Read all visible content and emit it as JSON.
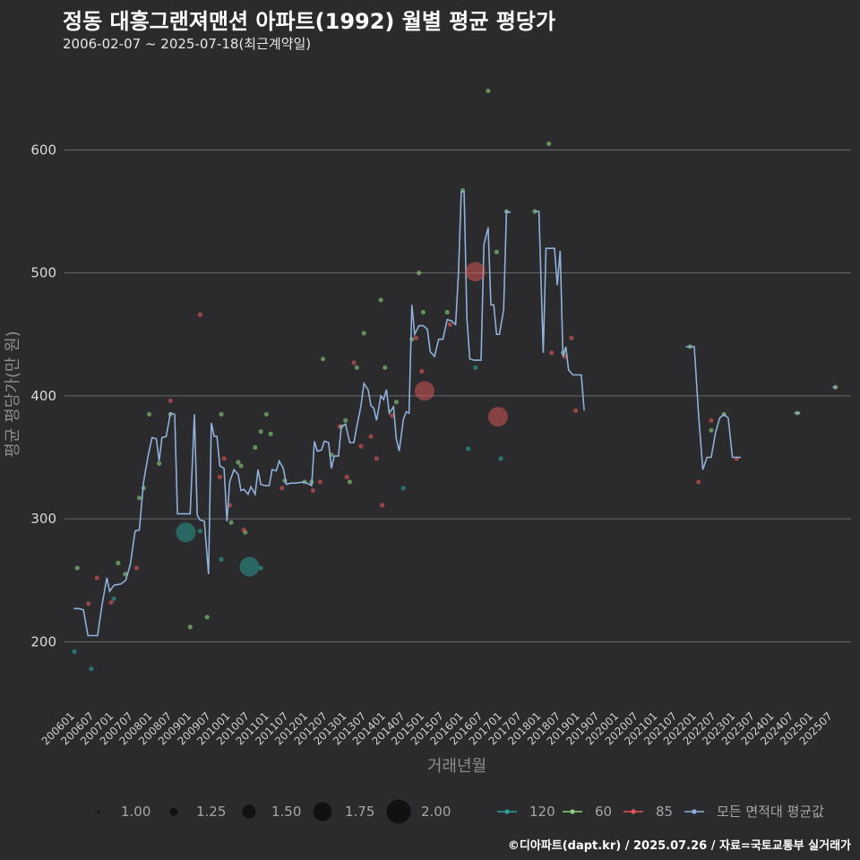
{
  "title": "정동 대흥그랜져맨션 아파트(1992) 월별 평균 평당가",
  "subtitle": "2006-02-07 ~ 2025-07-18(최근계약일)",
  "credit": "©디아파트(dapt.kr) / 2025.07.26 / 자료=국토교통부 실거래가",
  "colors": {
    "background": "#2b2b2d",
    "series_120": "#2aa198",
    "series_60": "#8cd17d",
    "series_85": "#e15759",
    "series_avg": "#8fb0d8"
  },
  "chart_data": {
    "type": "line",
    "xlabel": "거래년월",
    "ylabel": "평균 평당가(만 원)",
    "ylim": [
      150,
      660
    ],
    "y_ticks": [
      200,
      300,
      400,
      500,
      600
    ],
    "grid": true,
    "x_tick_labels": [
      "200601",
      "200607",
      "200701",
      "200707",
      "200801",
      "200807",
      "200901",
      "200907",
      "201001",
      "201007",
      "201101",
      "201107",
      "201201",
      "201207",
      "201301",
      "201307",
      "201401",
      "201407",
      "201501",
      "201507",
      "201601",
      "201607",
      "201701",
      "201707",
      "201801",
      "201807",
      "201901",
      "201907",
      "202001",
      "202007",
      "202101",
      "202107",
      "202201",
      "202207",
      "202301",
      "202307",
      "202401",
      "202407",
      "202501",
      "202507"
    ],
    "size_legend": {
      "title": "",
      "values": [
        "1.00",
        "1.25",
        "1.50",
        "1.75",
        "2.00"
      ]
    },
    "color_legend": [
      {
        "key": "series_120",
        "label": "120"
      },
      {
        "key": "series_60",
        "label": "60"
      },
      {
        "key": "series_85",
        "label": "85"
      },
      {
        "key": "series_avg",
        "label": "모든 면적대 평균값"
      }
    ],
    "avg_line": [
      [
        2006.08,
        227
      ],
      [
        2006.25,
        227
      ],
      [
        2006.42,
        226
      ],
      [
        2006.58,
        205
      ],
      [
        2006.75,
        205
      ],
      [
        2006.92,
        205
      ],
      [
        2007.08,
        230
      ],
      [
        2007.25,
        252
      ],
      [
        2007.35,
        241
      ],
      [
        2007.5,
        246
      ],
      [
        2007.75,
        247
      ],
      [
        2007.92,
        250
      ],
      [
        2008.08,
        263
      ],
      [
        2008.25,
        290
      ],
      [
        2008.4,
        291
      ],
      [
        2008.55,
        330
      ],
      [
        2008.7,
        350
      ],
      [
        2008.85,
        366
      ],
      [
        2009.0,
        365
      ],
      [
        2009.1,
        347
      ],
      [
        2009.2,
        366
      ],
      [
        2009.35,
        367
      ],
      [
        2009.5,
        386
      ],
      [
        2009.65,
        385
      ],
      [
        2009.75,
        304
      ],
      [
        2009.9,
        304
      ],
      [
        2010.05,
        304
      ],
      [
        2010.2,
        304
      ],
      [
        2010.35,
        385
      ],
      [
        2010.45,
        303
      ],
      [
        2010.55,
        299
      ],
      [
        2010.7,
        298
      ],
      [
        2010.85,
        255
      ],
      [
        2010.95,
        378
      ],
      [
        2011.05,
        367
      ],
      [
        2011.15,
        367
      ],
      [
        2011.25,
        343
      ],
      [
        2011.4,
        341
      ],
      [
        2011.5,
        298
      ],
      [
        2011.6,
        330
      ],
      [
        2011.75,
        340
      ],
      [
        2011.9,
        336
      ],
      [
        2012.0,
        323
      ],
      [
        2012.1,
        324
      ],
      [
        2012.25,
        320
      ],
      [
        2012.35,
        326
      ],
      [
        2012.5,
        320
      ],
      [
        2012.6,
        340
      ],
      [
        2012.7,
        328
      ],
      [
        2012.85,
        327
      ],
      [
        2013.0,
        327
      ],
      [
        2013.1,
        340
      ],
      [
        2013.25,
        339
      ],
      [
        2013.35,
        347
      ],
      [
        2013.5,
        341
      ],
      [
        2013.6,
        328
      ],
      [
        2013.75,
        329
      ],
      [
        2013.9,
        329
      ],
      [
        2014.25,
        330
      ],
      [
        2014.5,
        327
      ],
      [
        2014.6,
        363
      ],
      [
        2014.7,
        355
      ],
      [
        2014.85,
        356
      ],
      [
        2014.95,
        363
      ],
      [
        2015.1,
        362
      ],
      [
        2015.2,
        341
      ],
      [
        2015.3,
        351
      ],
      [
        2015.45,
        351
      ],
      [
        2015.55,
        375
      ],
      [
        2015.7,
        377
      ],
      [
        2015.85,
        362
      ],
      [
        2016.0,
        362
      ],
      [
        2016.1,
        375
      ],
      [
        2016.25,
        392
      ],
      [
        2016.35,
        410
      ],
      [
        2016.5,
        405
      ],
      [
        2016.6,
        392
      ],
      [
        2016.7,
        390
      ],
      [
        2016.8,
        380
      ],
      [
        2016.95,
        400
      ],
      [
        2017.05,
        397
      ],
      [
        2017.15,
        405
      ],
      [
        2017.25,
        386
      ],
      [
        2017.4,
        391
      ],
      [
        2017.5,
        365
      ],
      [
        2017.6,
        355
      ],
      [
        2017.75,
        381
      ],
      [
        2017.85,
        387
      ],
      [
        2017.95,
        386
      ],
      [
        2018.05,
        474
      ],
      [
        2018.15,
        450
      ],
      [
        2018.3,
        457
      ],
      [
        2018.45,
        457
      ],
      [
        2018.6,
        454
      ],
      [
        2018.7,
        436
      ],
      [
        2018.85,
        432
      ],
      [
        2019.0,
        446
      ],
      [
        2019.15,
        446
      ],
      [
        2019.3,
        462
      ],
      [
        2019.45,
        461
      ],
      [
        2019.6,
        458
      ],
      [
        2019.7,
        500
      ],
      [
        2019.8,
        566
      ],
      [
        2019.9,
        566
      ],
      [
        2020.0,
        463
      ],
      [
        2020.1,
        430
      ],
      [
        2020.25,
        429
      ],
      [
        2020.4,
        429
      ],
      [
        2020.5,
        429
      ],
      [
        2020.6,
        523
      ],
      [
        2020.75,
        537
      ],
      [
        2020.85,
        474
      ],
      [
        2020.95,
        474
      ],
      [
        2021.05,
        450
      ],
      [
        2021.15,
        450
      ],
      [
        2021.3,
        470
      ],
      [
        2021.4,
        550
      ],
      [
        2021.55,
        549
      ]
    ],
    "avg_line_2": [
      [
        2022.4,
        550
      ],
      [
        2022.55,
        550
      ],
      [
        2022.7,
        435
      ],
      [
        2022.8,
        520
      ],
      [
        2022.95,
        520
      ],
      [
        2023.1,
        520
      ],
      [
        2023.2,
        490
      ],
      [
        2023.3,
        518
      ],
      [
        2023.4,
        432
      ],
      [
        2023.5,
        440
      ],
      [
        2023.6,
        421
      ],
      [
        2023.75,
        417
      ],
      [
        2023.9,
        417
      ],
      [
        2024.05,
        417
      ],
      [
        2024.15,
        388
      ]
    ],
    "avg_line_3": [
      [
        2027.75,
        440
      ],
      [
        2027.9,
        440
      ],
      [
        2028.05,
        440
      ],
      [
        2028.2,
        385
      ],
      [
        2028.35,
        340
      ],
      [
        2028.5,
        350
      ],
      [
        2028.65,
        350
      ],
      [
        2028.8,
        370
      ],
      [
        2028.95,
        382
      ],
      [
        2029.1,
        385
      ],
      [
        2029.25,
        382
      ],
      [
        2029.4,
        350
      ],
      [
        2029.55,
        350
      ],
      [
        2029.7,
        350
      ]
    ],
    "avg_line_4": [
      [
        2031.6,
        386
      ],
      [
        2031.8,
        386
      ]
    ],
    "avg_line_5": [
      [
        2032.95,
        407
      ],
      [
        2033.1,
        407
      ]
    ],
    "points_120": [
      [
        2006.1,
        192
      ],
      [
        2006.7,
        178
      ],
      [
        2007.5,
        235
      ],
      [
        2010.55,
        290
      ],
      [
        2011.3,
        267
      ],
      [
        2012.7,
        260
      ],
      [
        2017.75,
        325
      ],
      [
        2020.05,
        357
      ],
      [
        2020.3,
        423
      ],
      [
        2021.2,
        349
      ]
    ],
    "points_60": [
      [
        2006.2,
        260
      ],
      [
        2007.65,
        264
      ],
      [
        2007.9,
        255
      ],
      [
        2008.4,
        317
      ],
      [
        2008.55,
        325
      ],
      [
        2008.75,
        385
      ],
      [
        2009.1,
        345
      ],
      [
        2009.5,
        385
      ],
      [
        2010.2,
        212
      ],
      [
        2010.8,
        220
      ],
      [
        2011.3,
        385
      ],
      [
        2011.65,
        297
      ],
      [
        2011.9,
        346
      ],
      [
        2012.0,
        343
      ],
      [
        2012.15,
        289
      ],
      [
        2012.5,
        358
      ],
      [
        2012.7,
        371
      ],
      [
        2012.9,
        385
      ],
      [
        2013.05,
        369
      ],
      [
        2013.55,
        331
      ],
      [
        2014.25,
        330
      ],
      [
        2014.5,
        330
      ],
      [
        2014.9,
        430
      ],
      [
        2015.2,
        352
      ],
      [
        2015.55,
        375
      ],
      [
        2015.7,
        380
      ],
      [
        2015.85,
        330
      ],
      [
        2016.1,
        423
      ],
      [
        2016.35,
        451
      ],
      [
        2016.95,
        478
      ],
      [
        2017.1,
        423
      ],
      [
        2017.5,
        395
      ],
      [
        2018.05,
        446
      ],
      [
        2018.3,
        500
      ],
      [
        2018.45,
        468
      ],
      [
        2019.3,
        468
      ],
      [
        2019.85,
        567
      ],
      [
        2020.75,
        648
      ],
      [
        2021.05,
        517
      ],
      [
        2021.4,
        550
      ],
      [
        2022.4,
        550
      ],
      [
        2022.9,
        605
      ],
      [
        2023.4,
        435
      ],
      [
        2027.9,
        440
      ],
      [
        2028.65,
        372
      ],
      [
        2029.1,
        385
      ],
      [
        2031.7,
        386
      ],
      [
        2033.05,
        407
      ]
    ],
    "points_85": [
      [
        2006.6,
        231
      ],
      [
        2006.9,
        252
      ],
      [
        2007.4,
        232
      ],
      [
        2008.3,
        260
      ],
      [
        2009.5,
        396
      ],
      [
        2010.55,
        466
      ],
      [
        2011.25,
        334
      ],
      [
        2011.4,
        349
      ],
      [
        2011.6,
        311
      ],
      [
        2012.1,
        291
      ],
      [
        2013.45,
        325
      ],
      [
        2014.55,
        323
      ],
      [
        2014.8,
        330
      ],
      [
        2015.5,
        375
      ],
      [
        2015.75,
        334
      ],
      [
        2016.0,
        427
      ],
      [
        2016.25,
        359
      ],
      [
        2016.6,
        367
      ],
      [
        2016.8,
        349
      ],
      [
        2017.0,
        311
      ],
      [
        2017.35,
        384
      ],
      [
        2018.2,
        447
      ],
      [
        2018.4,
        420
      ],
      [
        2019.4,
        458
      ],
      [
        2023.0,
        435
      ],
      [
        2023.45,
        432
      ],
      [
        2023.7,
        447
      ],
      [
        2023.85,
        388
      ],
      [
        2028.2,
        330
      ],
      [
        2028.65,
        380
      ],
      [
        2029.55,
        349
      ]
    ],
    "bubbles": [
      {
        "series": "series_120",
        "x": 2010.05,
        "y": 289,
        "size": 1.75
      },
      {
        "series": "series_120",
        "x": 2012.3,
        "y": 261,
        "size": 1.75
      },
      {
        "series": "series_85",
        "x": 2018.5,
        "y": 404,
        "size": 1.75
      },
      {
        "series": "series_85",
        "x": 2020.3,
        "y": 501,
        "size": 1.75
      },
      {
        "series": "series_85",
        "x": 2021.1,
        "y": 383,
        "size": 1.75
      }
    ]
  }
}
